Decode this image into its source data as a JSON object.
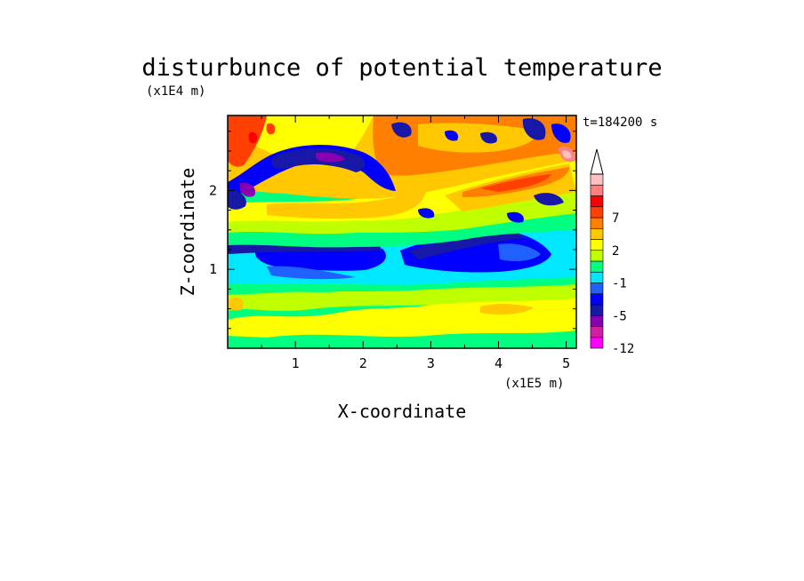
{
  "chart_data": {
    "type": "heatmap",
    "title": "disturbunce of potential temperature",
    "xlabel": "X-coordinate",
    "ylabel": "Z-coordinate",
    "x_unit": "(x1E5 m)",
    "y_unit": "(x1E4 m)",
    "time_label": "t=184200 s",
    "xlim": [
      0,
      5.15
    ],
    "ylim": [
      0,
      2.95
    ],
    "x_ticks": [
      1,
      2,
      3,
      4,
      5
    ],
    "y_ticks": [
      1,
      2
    ],
    "colorbar": {
      "levels": [
        -12,
        -9,
        -7,
        -5,
        -4,
        -3,
        -1,
        0,
        1,
        2,
        4,
        5,
        7,
        8,
        9,
        10
      ],
      "colors": [
        "#ff00ff",
        "#d020a0",
        "#8800b0",
        "#1818a8",
        "#0000ff",
        "#2060ff",
        "#00e8ff",
        "#00ff80",
        "#c0ff00",
        "#ffff00",
        "#ffc800",
        "#ff8000",
        "#ff4000",
        "#ff0000",
        "#ff8080",
        "#ffc0c0"
      ],
      "tick_labels": [
        "-12",
        "-5",
        "-1",
        "2",
        "7"
      ],
      "tick_values": [
        -12,
        -5,
        -1,
        2,
        7
      ],
      "extend": "max"
    }
  }
}
